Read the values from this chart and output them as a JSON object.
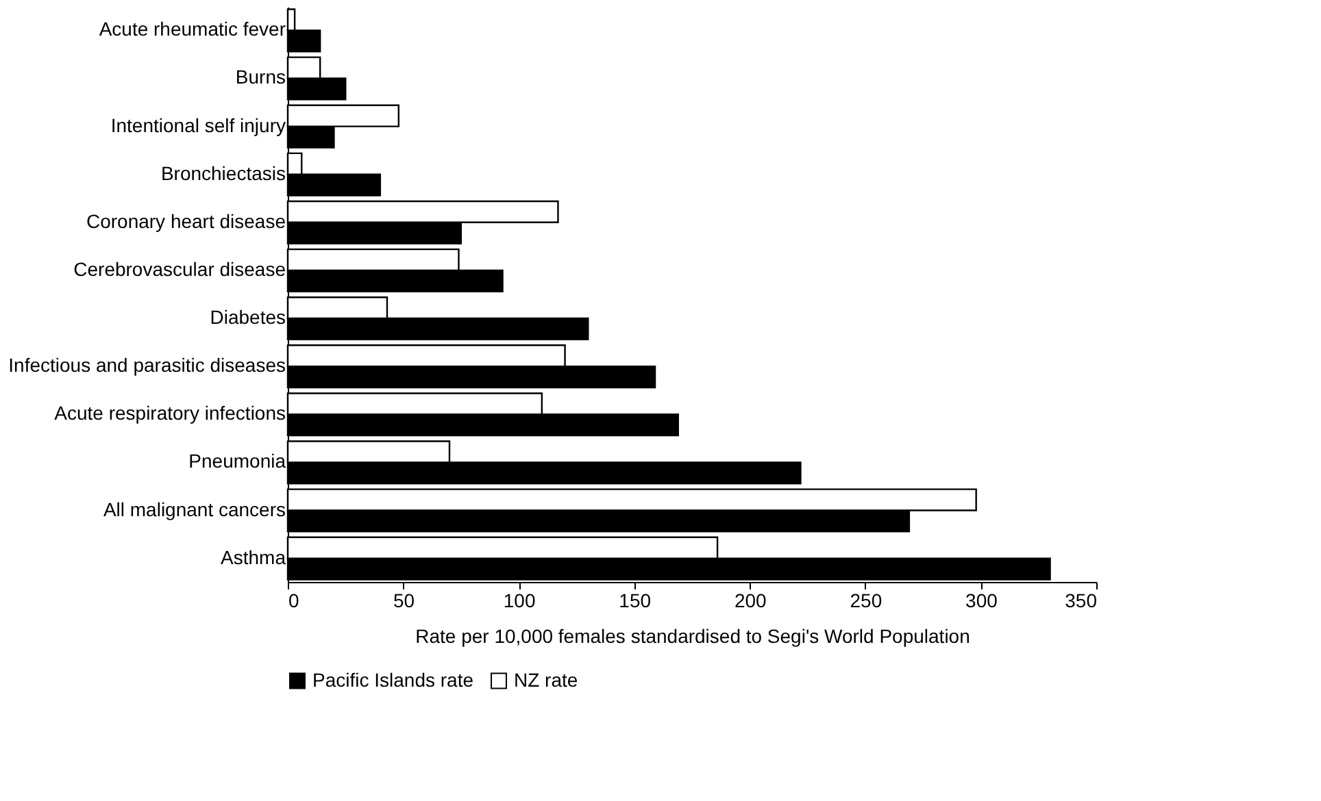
{
  "chart_data": {
    "type": "bar",
    "orientation": "horizontal",
    "xlabel": "Rate per 10,000 females standardised to Segi's World Population",
    "categories": [
      "Acute rheumatic fever",
      "Burns",
      "Intentional self injury",
      "Bronchiectasis",
      "Coronary heart disease",
      "Cerebrovascular disease",
      "Diabetes",
      "Infectious and parasitic diseases",
      "Acute respiratory infections",
      "Pneumonia",
      "All malignant cancers",
      "Asthma"
    ],
    "series": [
      {
        "name": "Pacific Islands rate",
        "color": "#000000",
        "values": [
          14,
          25,
          20,
          40,
          75,
          93,
          130,
          159,
          169,
          222,
          269,
          330
        ]
      },
      {
        "name": "NZ rate",
        "color": "#ffffff",
        "values": [
          3,
          14,
          48,
          6,
          117,
          74,
          43,
          120,
          110,
          70,
          298,
          186
        ]
      }
    ],
    "xlim": [
      0,
      350
    ],
    "xticks": [
      0,
      50,
      100,
      150,
      200,
      250,
      300,
      350
    ],
    "grid": false,
    "legend": "bottom"
  }
}
